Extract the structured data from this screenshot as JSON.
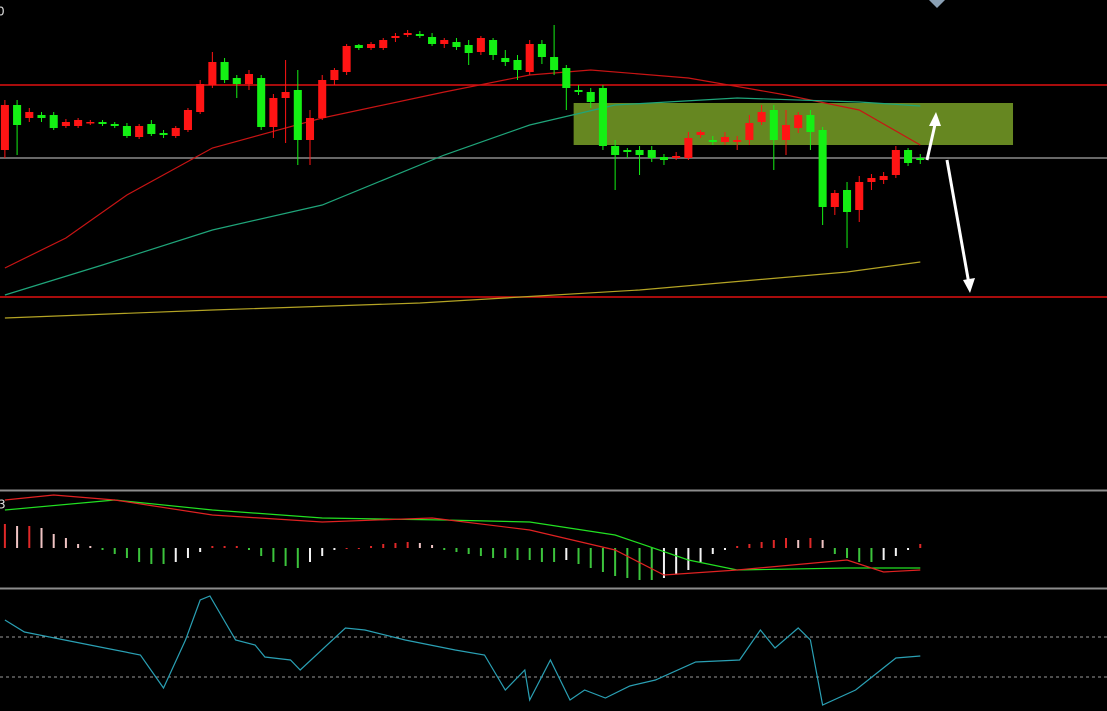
{
  "chart_data": [
    {
      "type": "candlestick",
      "label": "0",
      "xlim": [
        -0.4,
        90.3
      ],
      "ylim": [
        10,
        500
      ],
      "up_color": "#ff1414",
      "down_color": "#14f014",
      "open": [
        350,
        395,
        382,
        385,
        385,
        374,
        374,
        377,
        378,
        376,
        374,
        363,
        376,
        367,
        364,
        370,
        388,
        415,
        438,
        422,
        416,
        422,
        373,
        402,
        410,
        360,
        382,
        420,
        428,
        455,
        452,
        452,
        462,
        465,
        466,
        463,
        456,
        458,
        455,
        448,
        460,
        442,
        440,
        428,
        456,
        443,
        432,
        410,
        408,
        412,
        354,
        350,
        350,
        350,
        343,
        342,
        342,
        365,
        360,
        358,
        358,
        360,
        378,
        390,
        360,
        372,
        385,
        370,
        293,
        310,
        290,
        318,
        320,
        325,
        350,
        342
      ],
      "high": [
        400,
        400,
        392,
        388,
        388,
        381,
        382,
        380,
        380,
        378,
        377,
        376,
        380,
        370,
        374,
        392,
        420,
        448,
        442,
        425,
        430,
        425,
        406,
        440,
        430,
        390,
        425,
        432,
        456,
        456,
        458,
        462,
        467,
        470,
        469,
        467,
        462,
        462,
        460,
        464,
        462,
        450,
        445,
        460,
        460,
        475,
        435,
        415,
        412,
        415,
        360,
        352,
        354,
        354,
        346,
        348,
        368,
        370,
        364,
        368,
        364,
        385,
        395,
        395,
        390,
        388,
        390,
        373,
        310,
        318,
        324,
        326,
        328,
        354,
        352,
        346
      ],
      "low": [
        342,
        345,
        378,
        378,
        370,
        372,
        372,
        375,
        374,
        372,
        362,
        361,
        364,
        362,
        362,
        368,
        386,
        412,
        417,
        402,
        410,
        370,
        362,
        357,
        335,
        335,
        380,
        415,
        425,
        450,
        450,
        450,
        458,
        463,
        462,
        454,
        452,
        450,
        435,
        445,
        440,
        434,
        420,
        425,
        436,
        425,
        390,
        405,
        392,
        350,
        310,
        342,
        325,
        338,
        335,
        340,
        340,
        362,
        355,
        355,
        350,
        355,
        375,
        330,
        345,
        367,
        350,
        275,
        285,
        252,
        278,
        310,
        316,
        322,
        334,
        336
      ],
      "close": [
        395,
        375,
        388,
        382,
        372,
        378,
        380,
        378,
        376,
        374,
        364,
        374,
        366,
        365,
        372,
        390,
        416,
        438,
        420,
        416,
        426,
        373,
        402,
        408,
        360,
        382,
        420,
        430,
        454,
        452,
        456,
        460,
        464,
        467,
        464,
        456,
        460,
        453,
        447,
        462,
        445,
        438,
        430,
        456,
        443,
        430,
        412,
        408,
        398,
        354,
        345,
        348,
        345,
        342,
        340,
        344,
        362,
        368,
        358,
        363,
        360,
        377,
        388,
        360,
        375,
        385,
        368,
        293,
        307,
        288,
        318,
        322,
        324,
        350,
        337,
        340
      ],
      "lines": [
        {
          "color": "#c81414",
          "x": [
            0,
            5,
            10,
            17,
            26,
            36,
            43,
            48,
            56,
            64,
            70,
            75
          ],
          "values": [
            232,
            262,
            305,
            352,
            382,
            408,
            425,
            430,
            422,
            405,
            390,
            355
          ]
        },
        {
          "color": "#1fa57a",
          "x": [
            0,
            8,
            17,
            26,
            36,
            43,
            50,
            60,
            70,
            75
          ],
          "values": [
            205,
            235,
            270,
            295,
            345,
            375,
            395,
            402,
            398,
            394
          ]
        },
        {
          "color": "#b4a424",
          "x": [
            0,
            17,
            34,
            52,
            69,
            75
          ],
          "values": [
            182,
            190,
            197,
            210,
            228,
            238
          ]
        }
      ],
      "hlines": [
        {
          "value": 415,
          "color": "#e01010"
        },
        {
          "value": 203,
          "color": "#e01010"
        },
        {
          "value": 342,
          "color": "#8a8a8a"
        }
      ],
      "zone": {
        "x": [
          46.6,
          82.6
        ],
        "y": [
          355,
          397
        ],
        "color": "#6b8e23"
      }
    },
    {
      "type": "macd",
      "label": "3",
      "xlim": [
        -0.4,
        90.3
      ],
      "ylim": [
        -40,
        56
      ],
      "hist": [
        24,
        22,
        22,
        20,
        14,
        10,
        4,
        2,
        -2,
        -6,
        -10,
        -14,
        -16,
        -16,
        -14,
        -10,
        -4,
        2,
        2,
        2,
        -2,
        -8,
        -14,
        -18,
        -20,
        -14,
        -8,
        -2,
        0,
        0,
        2,
        4,
        5,
        6,
        5,
        3,
        -2,
        -4,
        -6,
        -8,
        -10,
        -10,
        -12,
        -12,
        -14,
        -14,
        -12,
        -16,
        -20,
        -24,
        -28,
        -30,
        -32,
        -32,
        -30,
        -26,
        -22,
        -14,
        -6,
        -2,
        2,
        4,
        6,
        8,
        10,
        8,
        10,
        8,
        -6,
        -10,
        -14,
        -14,
        -12,
        -8,
        -2,
        4
      ],
      "hist_colors": {
        "pos_up": "#e02828",
        "pos_down": "#f0c4c4",
        "neg_up": "#f4f4f4",
        "neg_down": "#3cc43c"
      },
      "lines": [
        {
          "color": "#22e022",
          "x": [
            0,
            9,
            17,
            26,
            36,
            43,
            50,
            56,
            60,
            69,
            75
          ],
          "values": [
            38,
            48,
            38,
            30,
            28,
            26,
            13,
            -12,
            -22,
            -20,
            -20
          ]
        },
        {
          "color": "#e02222",
          "x": [
            0,
            4,
            9,
            17,
            26,
            35,
            43,
            50,
            54,
            60,
            69,
            72,
            75
          ],
          "values": [
            48,
            53,
            48,
            33,
            26,
            30,
            18,
            -2,
            -27,
            -22,
            -12,
            -24,
            -22
          ]
        }
      ]
    },
    {
      "type": "line",
      "xlim": [
        -0.4,
        90.3
      ],
      "ylim": [
        -11,
        110
      ],
      "color": "#2aa0b4",
      "x": [
        0,
        1.6,
        4.9,
        8.2,
        11.1,
        13,
        14.8,
        16,
        16.8,
        18.9,
        20.5,
        21.3,
        23.4,
        24.2,
        27.9,
        29.5,
        32.8,
        36.9,
        39.3,
        41,
        42.6,
        43,
        44.7,
        46.3,
        47.5,
        49.2,
        51.2,
        53.3,
        56.6,
        60.2,
        61.9,
        63.1,
        65,
        66,
        67,
        69.7,
        73,
        75
      ],
      "values": [
        80,
        68,
        60,
        52,
        45,
        12,
        60,
        100,
        104,
        60,
        55,
        43,
        40,
        30,
        72,
        70,
        60,
        50,
        45,
        10,
        30,
        0,
        40,
        0,
        10,
        2,
        14,
        20,
        38,
        40,
        70,
        52,
        72,
        60,
        -5,
        10,
        42,
        44
      ],
      "hlines": [
        {
          "value": 63,
          "color": "#9a9a9a"
        },
        {
          "value": 23,
          "color": "#9a9a9a"
        }
      ]
    }
  ]
}
